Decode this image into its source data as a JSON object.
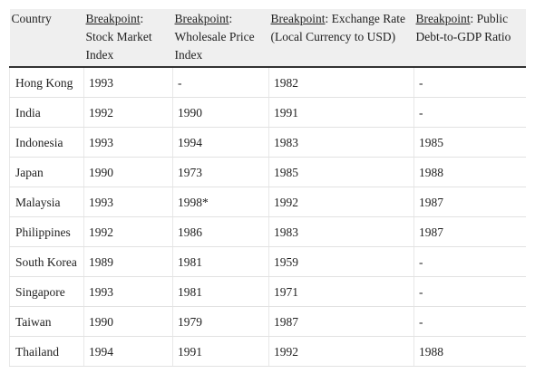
{
  "table": {
    "header": [
      {
        "text": "Country"
      },
      {
        "underlined": "Breakpoint",
        "rest": ": Stock Market Index"
      },
      {
        "underlined": "Breakpoint",
        "rest": ": Wholesale Price Index"
      },
      {
        "underlined": "Breakpoint",
        "rest": ": Exchange Rate (Local Currency to USD)"
      },
      {
        "underlined": "Breakpoint",
        "rest": ": Public Debt-to-GDP Ratio"
      }
    ],
    "rows": [
      [
        "Hong Kong",
        "1993",
        "-",
        "1982",
        "-"
      ],
      [
        "India",
        "1992",
        "1990",
        "1991",
        "-"
      ],
      [
        "Indonesia",
        "1993",
        "1994",
        "1983",
        "1985"
      ],
      [
        "Japan",
        "1990",
        "1973",
        "1985",
        "1988"
      ],
      [
        "Malaysia",
        "1993",
        "1998*",
        "1992",
        "1987"
      ],
      [
        "Philippines",
        "1992",
        "1986",
        "1983",
        "1987"
      ],
      [
        "South Korea",
        "1989",
        "1981",
        "1959",
        "-"
      ],
      [
        "Singapore",
        "1993",
        "1981",
        "1971",
        "-"
      ],
      [
        "Taiwan",
        "1990",
        "1979",
        "1987",
        "-"
      ],
      [
        "Thailand",
        "1994",
        "1991",
        "1992",
        "1988"
      ]
    ]
  }
}
